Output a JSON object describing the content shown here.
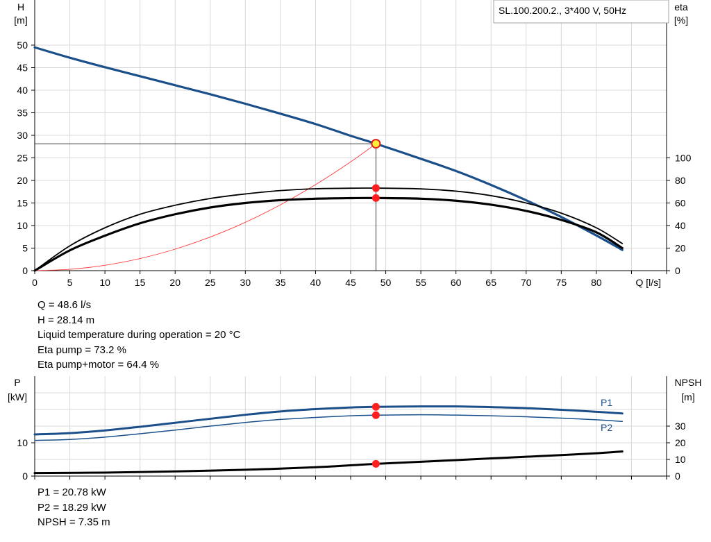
{
  "chart_data": [
    {
      "type": "line",
      "title": "SL.100.200.2., 3*400 V, 50Hz",
      "xlabel": "Q [l/s]",
      "ylabel": [
        "H",
        "[m]"
      ],
      "y2label": [
        "eta",
        "[%]"
      ],
      "xlim": [
        0,
        90
      ],
      "ylim": [
        0,
        55
      ],
      "y2lim": [
        0,
        250
      ],
      "xticks": [
        0,
        5,
        10,
        15,
        20,
        25,
        30,
        35,
        40,
        45,
        50,
        55,
        60,
        65,
        70,
        75,
        80
      ],
      "yticks": [
        0,
        5,
        10,
        15,
        20,
        25,
        30,
        35,
        40,
        45,
        50
      ],
      "y2ticks": [
        0,
        20,
        40,
        60,
        80,
        100
      ],
      "grid": true,
      "series": [
        {
          "key": "H",
          "axis": "left",
          "color": "#1b4f8a",
          "width": 3.2,
          "x": [
            0,
            5,
            10,
            15,
            20,
            25,
            30,
            35,
            40,
            45,
            48.6,
            55,
            60,
            65,
            70,
            75,
            80,
            83.7
          ],
          "y": [
            49.5,
            47.2,
            45.1,
            43.1,
            41.1,
            39.1,
            37.0,
            34.8,
            32.5,
            29.9,
            28.14,
            24.8,
            22.1,
            19.0,
            15.6,
            11.9,
            7.8,
            4.6
          ]
        },
        {
          "key": "eta-pump",
          "axis": "right",
          "color": "#000000",
          "width": 1.8,
          "x": [
            0,
            5,
            10,
            15,
            20,
            25,
            30,
            35,
            40,
            45,
            48.6,
            55,
            60,
            65,
            70,
            75,
            80,
            83.7
          ],
          "y": [
            0,
            22,
            38,
            50,
            58,
            64,
            68,
            71,
            72.6,
            73.1,
            73.2,
            72.5,
            70.5,
            66.5,
            60,
            51,
            38,
            24
          ]
        },
        {
          "key": "eta-pump-motor",
          "axis": "right",
          "color": "#000000",
          "width": 3.2,
          "x": [
            0,
            5,
            10,
            15,
            20,
            25,
            30,
            35,
            40,
            45,
            48.6,
            55,
            60,
            65,
            70,
            75,
            80,
            83.7
          ],
          "y": [
            0,
            18,
            31,
            42,
            50,
            56,
            60,
            62.5,
            63.8,
            64.3,
            64.4,
            63.8,
            62,
            58.5,
            53,
            45,
            34,
            20
          ]
        },
        {
          "key": "system-curve",
          "axis": "left",
          "color": "#ff3b3b",
          "width": 0.9,
          "x": [
            0,
            5,
            10,
            15,
            20,
            25,
            30,
            35,
            40,
            45,
            48.6
          ],
          "y": [
            0,
            0.3,
            1.19,
            2.68,
            4.77,
            7.45,
            10.72,
            14.6,
            19.06,
            24.12,
            28.14
          ]
        }
      ],
      "duty_point": {
        "x": 48.6,
        "y": 28.14,
        "eta_pump": 73.2,
        "eta_pump_motor": 64.4
      }
    },
    {
      "type": "line",
      "ylabel": [
        "P",
        "[kW]"
      ],
      "y2label": [
        "NPSH",
        "[m]"
      ],
      "xlim": [
        0,
        90
      ],
      "ylim": [
        0,
        25
      ],
      "y2lim": [
        0,
        50
      ],
      "yticks": [
        0,
        10
      ],
      "y2ticks": [
        0,
        10,
        20,
        30
      ],
      "grid": true,
      "series": [
        {
          "name": "P1",
          "key": "P1",
          "axis": "left",
          "color": "#1b4f8a",
          "width": 3,
          "x": [
            0,
            5,
            10,
            15,
            20,
            25,
            30,
            35,
            40,
            45,
            48.6,
            55,
            60,
            65,
            70,
            75,
            80,
            83.7
          ],
          "y": [
            12.5,
            12.9,
            13.7,
            14.8,
            16.0,
            17.2,
            18.4,
            19.4,
            20.1,
            20.6,
            20.78,
            20.9,
            20.9,
            20.7,
            20.4,
            19.9,
            19.3,
            18.8
          ]
        },
        {
          "name": "P2",
          "key": "P2",
          "axis": "left",
          "color": "#1b4f8a",
          "width": 1.5,
          "x": [
            0,
            5,
            10,
            15,
            20,
            25,
            30,
            35,
            40,
            45,
            48.6,
            55,
            60,
            65,
            70,
            75,
            80,
            83.7
          ],
          "y": [
            10.7,
            11.0,
            11.7,
            12.7,
            13.8,
            15.0,
            16.1,
            17.0,
            17.6,
            18.1,
            18.29,
            18.4,
            18.3,
            18.1,
            17.8,
            17.4,
            16.9,
            16.4
          ]
        },
        {
          "key": "NPSH",
          "axis": "right",
          "color": "#000000",
          "width": 3,
          "x": [
            0,
            10,
            20,
            30,
            40,
            48.6,
            55,
            60,
            65,
            70,
            75,
            80,
            83.7
          ],
          "y": [
            1.8,
            2.1,
            2.8,
            3.8,
            5.3,
            7.35,
            8.6,
            9.6,
            10.6,
            11.6,
            12.6,
            13.7,
            14.8
          ]
        }
      ],
      "duty_point": {
        "x": 48.6,
        "p1": 20.78,
        "p2": 18.29,
        "npsh": 7.35
      }
    }
  ],
  "duty_info": [
    "Q = 48.6 l/s",
    "H = 28.14 m",
    "Liquid temperature during operation = 20 °C",
    "Eta pump = 73.2 %",
    "Eta pump+motor = 64.4 %"
  ],
  "power_info": [
    "P1 = 20.78 kW",
    "P2 = 18.29 kW",
    "NPSH = 7.35 m"
  ]
}
